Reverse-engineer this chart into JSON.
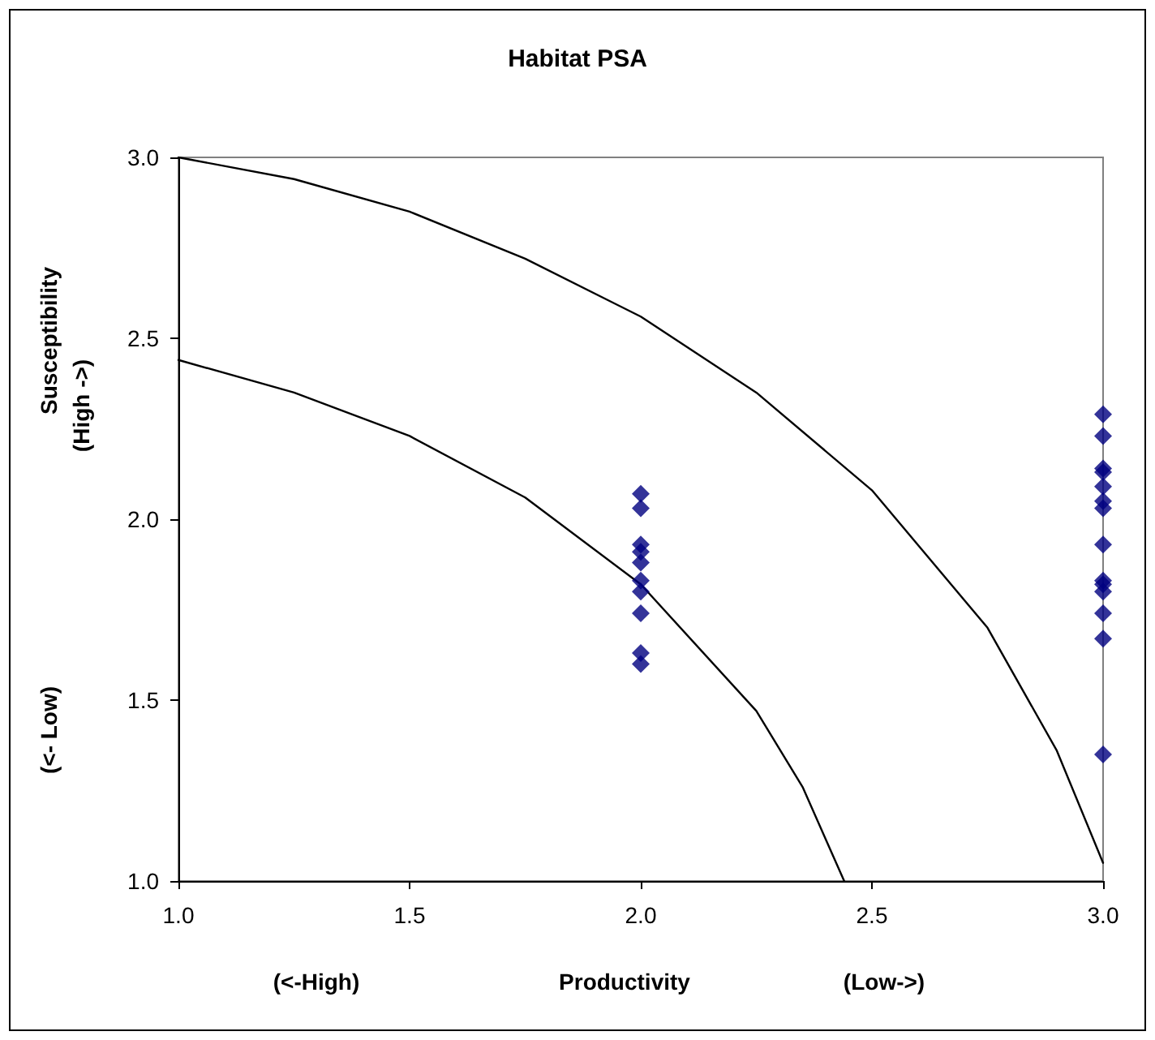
{
  "chart_data": {
    "type": "scatter",
    "title": "Habitat PSA",
    "xlabel": "Productivity",
    "ylabel": "Susceptibility",
    "annotations": [
      "(High ->)",
      "(<- Low)",
      "(<-High)",
      "(Low->)"
    ],
    "marker": "diamond",
    "grid": false,
    "xlim": [
      1.0,
      3.0
    ],
    "ylim": [
      1.0,
      3.0
    ],
    "xticks": [
      {
        "value": 1,
        "label": "1.0"
      },
      {
        "value": 1.5,
        "label": "1.5"
      },
      {
        "value": 2,
        "label": "2.0"
      },
      {
        "value": 2.5,
        "label": "2.5"
      },
      {
        "value": 3,
        "label": "3.0"
      }
    ],
    "yticks": [
      {
        "value": 1,
        "label": "1.0"
      },
      {
        "value": 1.5,
        "label": "1.5"
      },
      {
        "value": 2,
        "label": "2.0"
      },
      {
        "value": 2.5,
        "label": "2.5"
      },
      {
        "value": 3,
        "label": "3.0"
      }
    ],
    "series": [
      {
        "color": "#000080",
        "x": [
          2,
          2,
          2,
          2,
          2,
          2,
          2,
          2,
          2,
          2
        ],
        "values": [
          2.07,
          2.03,
          1.93,
          1.91,
          1.88,
          1.83,
          1.8,
          1.74,
          1.63,
          1.6
        ]
      },
      {
        "color": "#000080",
        "x": [
          3,
          3,
          3,
          3,
          3,
          3,
          3,
          3,
          3,
          3,
          3,
          3,
          3,
          3
        ],
        "values": [
          2.29,
          2.23,
          2.14,
          2.13,
          2.09,
          2.05,
          2.03,
          1.93,
          1.83,
          1.82,
          1.8,
          1.74,
          1.67,
          1.35
        ]
      },
      {
        "type": "line",
        "marker": "none",
        "color": "#000000",
        "x": [
          1.0,
          1.25,
          1.5,
          1.75,
          2.0,
          2.25,
          2.5,
          2.75,
          2.9,
          3.0
        ],
        "values": [
          3.0,
          2.94,
          2.85,
          2.72,
          2.56,
          2.35,
          2.08,
          1.7,
          1.36,
          1.05
        ]
      },
      {
        "type": "line",
        "marker": "none",
        "color": "#000000",
        "x": [
          1.0,
          1.25,
          1.5,
          1.75,
          2.0,
          2.25,
          2.35,
          2.44
        ],
        "values": [
          2.44,
          2.35,
          2.23,
          2.06,
          1.82,
          1.47,
          1.26,
          1.0
        ]
      }
    ]
  }
}
